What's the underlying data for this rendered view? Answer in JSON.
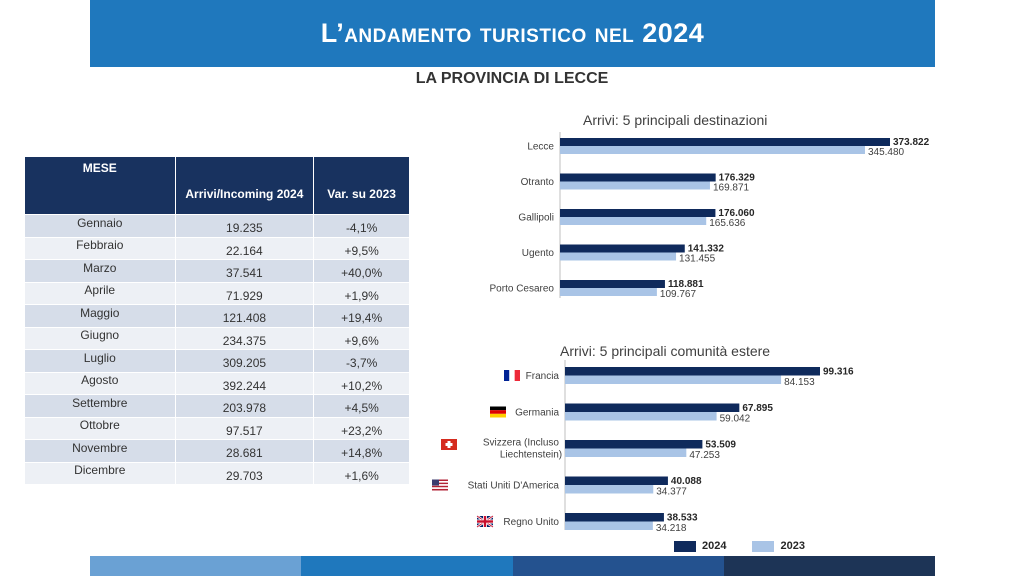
{
  "header": {
    "title": "L’andamento turistico nel 2024",
    "subtitle": "LA PROVINCIA DI LECCE"
  },
  "table": {
    "headers": {
      "month": "MESE",
      "arrivals": "Arrivi/Incoming 2024",
      "variation": "Var. su 2023"
    },
    "rows": [
      {
        "month": "Gennaio",
        "arrivals": "19.235",
        "variation": "-4,1%"
      },
      {
        "month": "Febbraio",
        "arrivals": "22.164",
        "variation": "+9,5%"
      },
      {
        "month": "Marzo",
        "arrivals": "37.541",
        "variation": "+40,0%"
      },
      {
        "month": "Aprile",
        "arrivals": "71.929",
        "variation": "+1,9%"
      },
      {
        "month": "Maggio",
        "arrivals": "121.408",
        "variation": "+19,4%"
      },
      {
        "month": "Giugno",
        "arrivals": "234.375",
        "variation": "+9,6%"
      },
      {
        "month": "Luglio",
        "arrivals": "309.205",
        "variation": "-3,7%"
      },
      {
        "month": "Agosto",
        "arrivals": "392.244",
        "variation": "+10,2%"
      },
      {
        "month": "Settembre",
        "arrivals": "203.978",
        "variation": "+4,5%"
      },
      {
        "month": "Ottobre",
        "arrivals": "97.517",
        "variation": "+23,2%"
      },
      {
        "month": "Novembre",
        "arrivals": "28.681",
        "variation": "+14,8%"
      },
      {
        "month": "Dicembre",
        "arrivals": "29.703",
        "variation": "+1,6%"
      }
    ]
  },
  "legend": {
    "series_2024": "2024",
    "series_2023": "2023"
  },
  "colors": {
    "dark_blue": "#0f2a5c",
    "light_blue": "#a9c4e6",
    "title_blue": "#1f78bd",
    "table_header": "#18325f",
    "bottom_bar": [
      "#6aa1d4",
      "#1f78bd",
      "#24528f",
      "#1d3456"
    ]
  },
  "chart_data": [
    {
      "type": "bar",
      "orientation": "horizontal",
      "title": "Arrivi: 5 principali destinazioni",
      "categories": [
        "Lecce",
        "Otranto",
        "Gallipoli",
        "Ugento",
        "Porto Cesareo"
      ],
      "series": [
        {
          "name": "2024",
          "values": [
            373822,
            176329,
            176060,
            141332,
            118881
          ],
          "labels": [
            "373.822",
            "176.329",
            "176.060",
            "141.332",
            "118.881"
          ]
        },
        {
          "name": "2023",
          "values": [
            345480,
            169871,
            165636,
            131455,
            109767
          ],
          "labels": [
            "345.480",
            "169.871",
            "165.636",
            "131.455",
            "109.767"
          ]
        }
      ],
      "xlim": [
        0,
        373822
      ],
      "grid": false,
      "legend": "bottom"
    },
    {
      "type": "bar",
      "orientation": "horizontal",
      "title": "Arrivi: 5 principali comunità estere",
      "categories": [
        "Francia",
        "Germania",
        "Svizzera (Incluso Liechtenstein)",
        "Stati Uniti D'America",
        "Regno Unito"
      ],
      "category_lines": [
        [
          "Francia"
        ],
        [
          "Germania"
        ],
        [
          "Svizzera (Incluso",
          "Liechtenstein)"
        ],
        [
          "Stati Uniti D'America"
        ],
        [
          "Regno Unito"
        ]
      ],
      "flag_icons": [
        "flag-france-icon",
        "flag-germany-icon",
        "flag-switzerland-icon",
        "flag-usa-icon",
        "flag-uk-icon"
      ],
      "series": [
        {
          "name": "2024",
          "values": [
            99316,
            67895,
            53509,
            40088,
            38533
          ],
          "labels": [
            "99.316",
            "67.895",
            "53.509",
            "40.088",
            "38.533"
          ]
        },
        {
          "name": "2023",
          "values": [
            84153,
            59042,
            47253,
            34377,
            34218
          ],
          "labels": [
            "84.153",
            "59.042",
            "47.253",
            "34.377",
            "34.218"
          ]
        }
      ],
      "xlim": [
        0,
        99316
      ],
      "grid": false,
      "legend": "bottom"
    }
  ]
}
